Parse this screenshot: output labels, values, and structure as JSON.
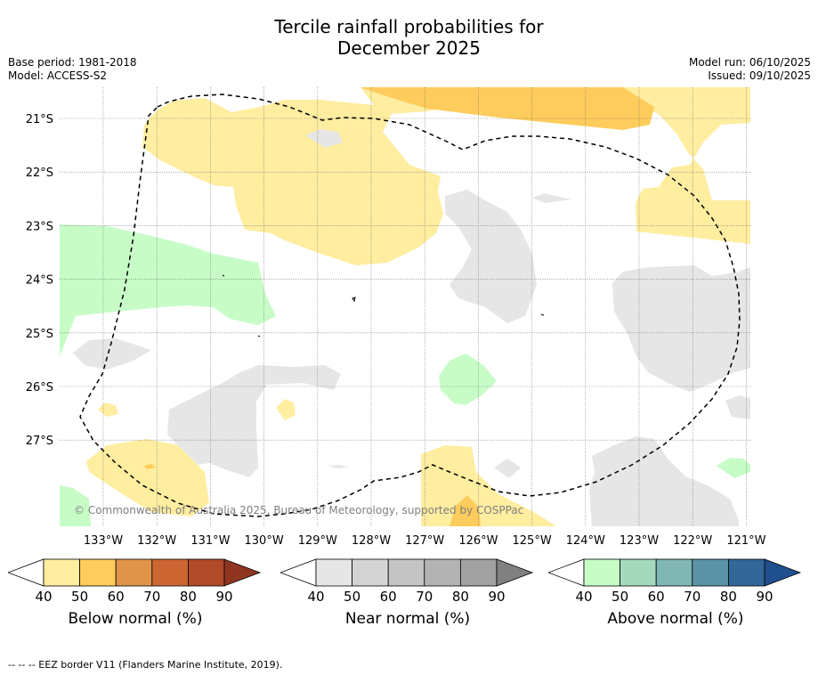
{
  "title_line1": "Tercile rainfall probabilities for",
  "title_line2": "December 2025",
  "base_period": "Base period: 1981-2018",
  "model": "Model: ACCESS-S2",
  "model_run": "Model run: 06/10/2025",
  "issued": "Issued: 09/10/2025",
  "copyright": "© Commonwealth of Australia 2025, Bureau of Meteorology, supported by COSPPac",
  "lat_labels": [
    "21°S",
    "22°S",
    "23°S",
    "24°S",
    "25°S",
    "26°S",
    "27°S"
  ],
  "lon_labels": [
    "133°W",
    "132°W",
    "131°W",
    "130°W",
    "129°W",
    "128°W",
    "127°W",
    "126°W",
    "125°W",
    "124°W",
    "123°W",
    "122°W",
    "121°W"
  ],
  "legends": [
    {
      "title": "Below normal (%)",
      "ticks": [
        "40",
        "50",
        "60",
        "70",
        "80",
        "90"
      ],
      "colors": [
        "#ffeda0",
        "#fecc5c",
        "#e0944a",
        "#cc6633",
        "#b04a28",
        "#8f3520"
      ]
    },
    {
      "title": "Near normal (%)",
      "ticks": [
        "40",
        "50",
        "60",
        "70",
        "80",
        "90"
      ],
      "colors": [
        "#e6e6e6",
        "#d4d4d4",
        "#c4c4c4",
        "#b3b3b3",
        "#a1a1a1",
        "#808080"
      ]
    },
    {
      "title": "Above normal (%)",
      "ticks": [
        "40",
        "50",
        "60",
        "70",
        "80",
        "90"
      ],
      "colors": [
        "#c7fcc7",
        "#a4d9bd",
        "#80b6b3",
        "#5b93a6",
        "#336699",
        "#1f4f8c"
      ]
    }
  ],
  "footnote": "-- -- -- EEZ border V11 (Flanders Marine Institute, 2019)."
}
